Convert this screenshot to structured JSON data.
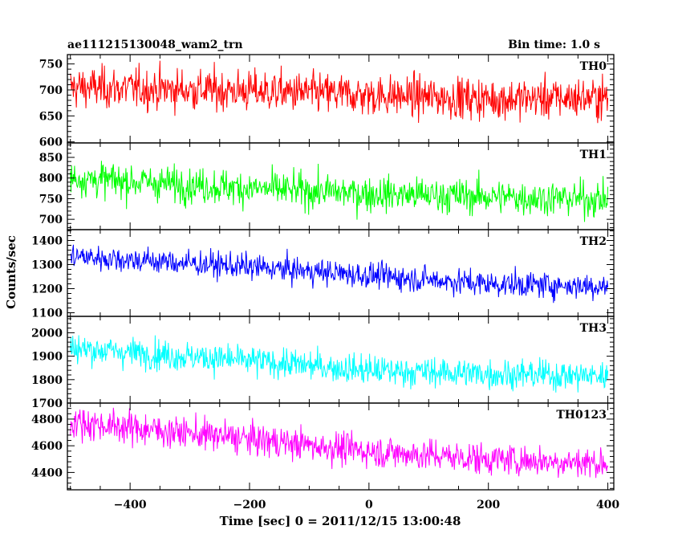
{
  "header": {
    "title": "ae111215130048_wam2_trn",
    "bin_time": "Bin time: 1.0 s"
  },
  "axes": {
    "ylabel": "Counts/sec",
    "xlabel": "Time [sec] 0 = 2011/12/15 13:00:48"
  },
  "chart_data": {
    "type": "line",
    "title": "ae111215130048_wam2_trn",
    "xlabel": "Time [sec] 0 = 2011/12/15 13:00:48",
    "ylabel": "Counts/sec",
    "xlim": [
      -505,
      410
    ],
    "x_ticks": [
      -400,
      -200,
      0,
      200,
      400
    ],
    "x_tick_labels": [
      "−400",
      "−200",
      "0",
      "200",
      "400"
    ],
    "data_x_range": [
      -500,
      400
    ],
    "bin_time_sec": 1.0,
    "grid": false,
    "legend": "none",
    "panels": [
      {
        "name": "TH0",
        "color": "#ff0000",
        "ylim": [
          598,
          768
        ],
        "y_ticks": [
          600,
          650,
          700,
          750
        ],
        "y_tick_labels": [
          "600",
          "650",
          "700",
          "750"
        ],
        "trend": [
          [
            -500,
            705
          ],
          [
            -200,
            698
          ],
          [
            0,
            690
          ],
          [
            200,
            683
          ],
          [
            400,
            685
          ]
        ],
        "noise_sd": 28
      },
      {
        "name": "TH1",
        "color": "#00ff00",
        "ylim": [
          675,
          885
        ],
        "y_ticks": [
          700,
          750,
          800,
          850
        ],
        "y_tick_labels": [
          "700",
          "750",
          "800",
          "850"
        ],
        "trend": [
          [
            -500,
            800
          ],
          [
            -200,
            775
          ],
          [
            0,
            762
          ],
          [
            200,
            755
          ],
          [
            400,
            748
          ]
        ],
        "noise_sd": 30
      },
      {
        "name": "TH2",
        "color": "#0000ff",
        "ylim": [
          1085,
          1445
        ],
        "y_ticks": [
          1100,
          1200,
          1300,
          1400
        ],
        "y_tick_labels": [
          "1100",
          "1200",
          "1300",
          "1400"
        ],
        "trend": [
          [
            -500,
            1335
          ],
          [
            -200,
            1290
          ],
          [
            0,
            1255
          ],
          [
            200,
            1220
          ],
          [
            400,
            1210
          ]
        ],
        "noise_sd": 38
      },
      {
        "name": "TH3",
        "color": "#00ffff",
        "ylim": [
          1700,
          2070
        ],
        "y_ticks": [
          1700,
          1800,
          1900,
          2000
        ],
        "y_tick_labels": [
          "1700",
          "1800",
          "1900",
          "2000"
        ],
        "trend": [
          [
            -500,
            1935
          ],
          [
            -200,
            1880
          ],
          [
            0,
            1840
          ],
          [
            200,
            1825
          ],
          [
            400,
            1815
          ]
        ],
        "noise_sd": 45
      },
      {
        "name": "TH0123",
        "color": "#ff00ff",
        "ylim": [
          4270,
          4920
        ],
        "y_ticks": [
          4400,
          4600,
          4800
        ],
        "y_tick_labels": [
          "4400",
          "4600",
          "4800"
        ],
        "trend": [
          [
            -500,
            4780
          ],
          [
            -200,
            4650
          ],
          [
            0,
            4560
          ],
          [
            200,
            4500
          ],
          [
            400,
            4470
          ]
        ],
        "noise_sd": 85
      }
    ]
  }
}
